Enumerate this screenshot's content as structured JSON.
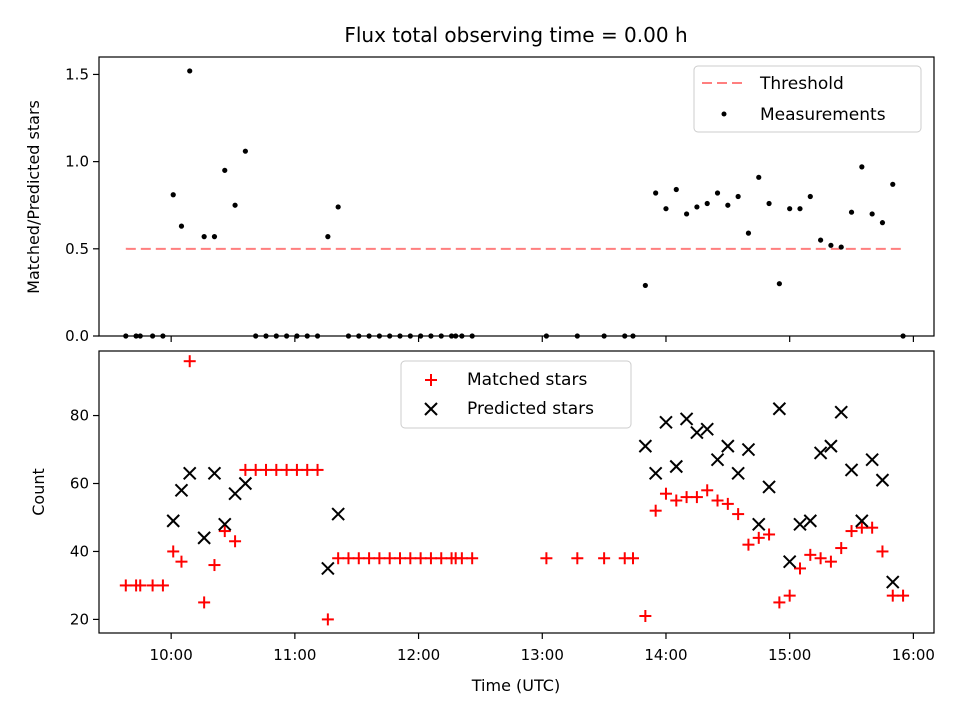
{
  "chart_data": [
    {
      "type": "scatter",
      "title": "Flux total observing time = 0.00 h",
      "xlabel": "",
      "ylabel": "Matched/Predicted stars",
      "xlim": [
        "09:25",
        "16:10"
      ],
      "ylim": [
        0,
        1.6
      ],
      "yticks": [
        "0.0",
        "0.5",
        "1.0",
        "1.5"
      ],
      "legend_position": "top-right",
      "threshold": {
        "name": "Threshold",
        "value": 0.5,
        "x_start": "09:38",
        "x_end": "15:55",
        "color": "#ff7f7f"
      },
      "series": [
        {
          "name": "Measurements",
          "color": "#000000",
          "points": [
            [
              "09:38",
              0
            ],
            [
              "09:43",
              0
            ],
            [
              "09:45",
              0
            ],
            [
              "09:51",
              0
            ],
            [
              "09:56",
              0
            ],
            [
              "10:01",
              0.81
            ],
            [
              "10:05",
              0.63
            ],
            [
              "10:09",
              1.52
            ],
            [
              "10:16",
              0.57
            ],
            [
              "10:21",
              0.57
            ],
            [
              "10:26",
              0.95
            ],
            [
              "10:31",
              0.75
            ],
            [
              "10:36",
              1.06
            ],
            [
              "10:41",
              0
            ],
            [
              "10:46",
              0
            ],
            [
              "10:51",
              0
            ],
            [
              "10:56",
              0
            ],
            [
              "11:01",
              0
            ],
            [
              "11:06",
              0
            ],
            [
              "11:11",
              0
            ],
            [
              "11:16",
              0.57
            ],
            [
              "11:21",
              0.74
            ],
            [
              "11:26",
              0
            ],
            [
              "11:31",
              0
            ],
            [
              "11:36",
              0
            ],
            [
              "11:41",
              0
            ],
            [
              "11:46",
              0
            ],
            [
              "11:51",
              0
            ],
            [
              "11:56",
              0
            ],
            [
              "12:01",
              0
            ],
            [
              "12:06",
              0
            ],
            [
              "12:11",
              0
            ],
            [
              "12:16",
              0
            ],
            [
              "12:18",
              0
            ],
            [
              "12:21",
              0
            ],
            [
              "12:26",
              0
            ],
            [
              "13:02",
              0
            ],
            [
              "13:17",
              0
            ],
            [
              "13:30",
              0
            ],
            [
              "13:40",
              0
            ],
            [
              "13:44",
              0
            ],
            [
              "13:50",
              0.29
            ],
            [
              "13:55",
              0.82
            ],
            [
              "14:00",
              0.73
            ],
            [
              "14:05",
              0.84
            ],
            [
              "14:10",
              0.7
            ],
            [
              "14:15",
              0.74
            ],
            [
              "14:20",
              0.76
            ],
            [
              "14:25",
              0.82
            ],
            [
              "14:30",
              0.75
            ],
            [
              "14:35",
              0.8
            ],
            [
              "14:40",
              0.59
            ],
            [
              "14:45",
              0.91
            ],
            [
              "14:50",
              0.76
            ],
            [
              "14:55",
              0.3
            ],
            [
              "15:00",
              0.73
            ],
            [
              "15:05",
              0.73
            ],
            [
              "15:10",
              0.8
            ],
            [
              "15:15",
              0.55
            ],
            [
              "15:20",
              0.52
            ],
            [
              "15:25",
              0.51
            ],
            [
              "15:30",
              0.71
            ],
            [
              "15:35",
              0.97
            ],
            [
              "15:40",
              0.7
            ],
            [
              "15:45",
              0.65
            ],
            [
              "15:50",
              0.87
            ],
            [
              "15:55",
              0
            ]
          ]
        }
      ]
    },
    {
      "type": "scatter",
      "title": "",
      "xlabel": "Time (UTC)",
      "ylabel": "Count",
      "xlim": [
        "09:25",
        "16:10"
      ],
      "ylim": [
        16,
        99
      ],
      "yticks": [
        "20",
        "40",
        "60",
        "80"
      ],
      "xticks": [
        "10:00",
        "11:00",
        "12:00",
        "13:00",
        "14:00",
        "15:00",
        "16:00"
      ],
      "legend_position": "top-center",
      "series": [
        {
          "name": "Matched stars",
          "marker": "+",
          "color": "#ff0000",
          "points": [
            [
              "09:38",
              30
            ],
            [
              "09:43",
              30
            ],
            [
              "09:45",
              30
            ],
            [
              "09:51",
              30
            ],
            [
              "09:56",
              30
            ],
            [
              "10:01",
              40
            ],
            [
              "10:05",
              37
            ],
            [
              "10:09",
              96
            ],
            [
              "10:16",
              25
            ],
            [
              "10:21",
              36
            ],
            [
              "10:26",
              46
            ],
            [
              "10:31",
              43
            ],
            [
              "10:36",
              64
            ],
            [
              "10:41",
              64
            ],
            [
              "10:46",
              64
            ],
            [
              "10:51",
              64
            ],
            [
              "10:56",
              64
            ],
            [
              "11:01",
              64
            ],
            [
              "11:06",
              64
            ],
            [
              "11:11",
              64
            ],
            [
              "11:16",
              20
            ],
            [
              "11:21",
              38
            ],
            [
              "11:26",
              38
            ],
            [
              "11:31",
              38
            ],
            [
              "11:36",
              38
            ],
            [
              "11:41",
              38
            ],
            [
              "11:46",
              38
            ],
            [
              "11:51",
              38
            ],
            [
              "11:56",
              38
            ],
            [
              "12:01",
              38
            ],
            [
              "12:06",
              38
            ],
            [
              "12:11",
              38
            ],
            [
              "12:16",
              38
            ],
            [
              "12:18",
              38
            ],
            [
              "12:21",
              38
            ],
            [
              "12:26",
              38
            ],
            [
              "13:02",
              38
            ],
            [
              "13:17",
              38
            ],
            [
              "13:30",
              38
            ],
            [
              "13:40",
              38
            ],
            [
              "13:44",
              38
            ],
            [
              "13:50",
              21
            ],
            [
              "13:55",
              52
            ],
            [
              "14:00",
              57
            ],
            [
              "14:05",
              55
            ],
            [
              "14:10",
              56
            ],
            [
              "14:15",
              56
            ],
            [
              "14:20",
              58
            ],
            [
              "14:25",
              55
            ],
            [
              "14:30",
              54
            ],
            [
              "14:35",
              51
            ],
            [
              "14:40",
              42
            ],
            [
              "14:45",
              44
            ],
            [
              "14:50",
              45
            ],
            [
              "14:55",
              25
            ],
            [
              "15:00",
              27
            ],
            [
              "15:05",
              35
            ],
            [
              "15:10",
              39
            ],
            [
              "15:15",
              38
            ],
            [
              "15:20",
              37
            ],
            [
              "15:25",
              41
            ],
            [
              "15:30",
              46
            ],
            [
              "15:35",
              47
            ],
            [
              "15:40",
              47
            ],
            [
              "15:45",
              40
            ],
            [
              "15:50",
              27
            ],
            [
              "15:55",
              27
            ]
          ]
        },
        {
          "name": "Predicted stars",
          "marker": "x",
          "color": "#000000",
          "points": [
            [
              "10:01",
              49
            ],
            [
              "10:05",
              58
            ],
            [
              "10:09",
              63
            ],
            [
              "10:16",
              44
            ],
            [
              "10:21",
              63
            ],
            [
              "10:26",
              48
            ],
            [
              "10:31",
              57
            ],
            [
              "10:36",
              60
            ],
            [
              "11:16",
              35
            ],
            [
              "11:21",
              51
            ],
            [
              "13:50",
              71
            ],
            [
              "13:55",
              63
            ],
            [
              "14:00",
              78
            ],
            [
              "14:05",
              65
            ],
            [
              "14:10",
              79
            ],
            [
              "14:15",
              75
            ],
            [
              "14:20",
              76
            ],
            [
              "14:25",
              67
            ],
            [
              "14:30",
              71
            ],
            [
              "14:35",
              63
            ],
            [
              "14:40",
              70
            ],
            [
              "14:45",
              48
            ],
            [
              "14:50",
              59
            ],
            [
              "14:55",
              82
            ],
            [
              "15:00",
              37
            ],
            [
              "15:05",
              48
            ],
            [
              "15:10",
              49
            ],
            [
              "15:15",
              69
            ],
            [
              "15:20",
              71
            ],
            [
              "15:25",
              81
            ],
            [
              "15:30",
              64
            ],
            [
              "15:35",
              49
            ],
            [
              "15:40",
              67
            ],
            [
              "15:45",
              61
            ],
            [
              "15:50",
              31
            ]
          ]
        }
      ]
    }
  ]
}
